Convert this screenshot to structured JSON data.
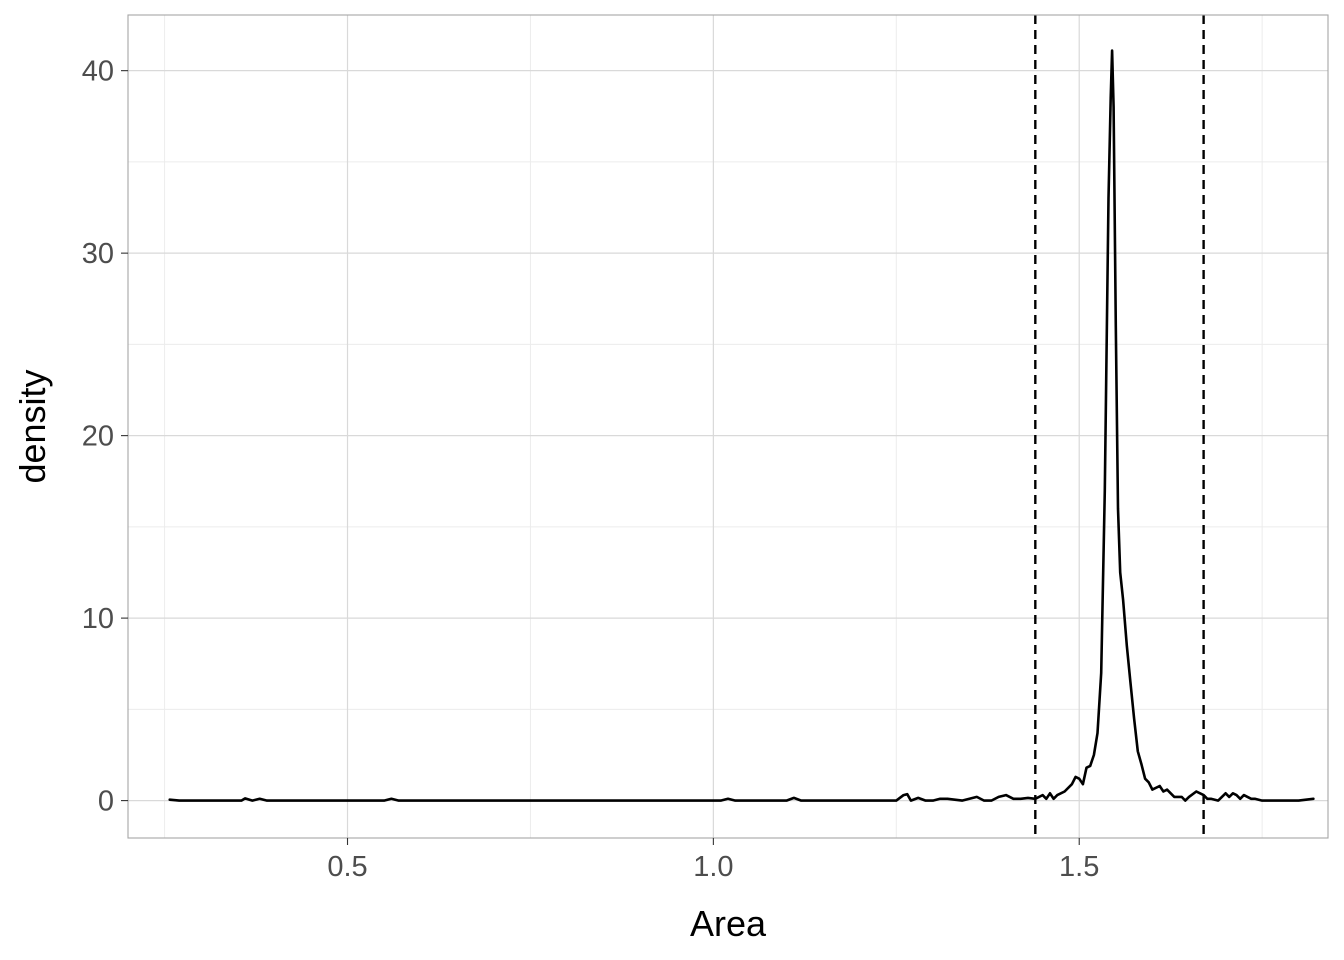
{
  "chart_data": {
    "type": "line",
    "title": "",
    "xlabel": "Area",
    "ylabel": "density",
    "xlim": [
      0.2,
      1.84
    ],
    "ylim": [
      -2.05,
      43.05
    ],
    "x_ticks": [
      0.5,
      1.0,
      1.5
    ],
    "x_tick_labels": [
      "0.5",
      "1.0",
      "1.5"
    ],
    "y_ticks": [
      0,
      10,
      20,
      30,
      40
    ],
    "y_tick_labels": [
      "0",
      "10",
      "20",
      "30",
      "40"
    ],
    "x_minor_ticks": [
      0.25,
      0.75,
      1.25,
      1.75
    ],
    "y_minor_ticks": [
      5,
      15,
      25,
      35
    ],
    "grid": true,
    "colors": {
      "line": "#000000",
      "grid_major": "#d9d9d9",
      "grid_minor": "#ececec",
      "panel_border": "#a6a6a6"
    },
    "reference_lines": [
      {
        "x": 1.44,
        "style": "dashed"
      },
      {
        "x": 1.67,
        "style": "dashed"
      }
    ],
    "series": [
      {
        "name": "density",
        "x": [
          0.257,
          0.27,
          0.3,
          0.34,
          0.355,
          0.36,
          0.37,
          0.38,
          0.39,
          0.42,
          0.5,
          0.55,
          0.56,
          0.57,
          0.65,
          0.75,
          0.85,
          0.95,
          1.01,
          1.02,
          1.03,
          1.08,
          1.1,
          1.11,
          1.12,
          1.14,
          1.2,
          1.25,
          1.26,
          1.265,
          1.27,
          1.28,
          1.29,
          1.3,
          1.31,
          1.32,
          1.34,
          1.36,
          1.37,
          1.38,
          1.39,
          1.4,
          1.41,
          1.42,
          1.43,
          1.44,
          1.45,
          1.455,
          1.46,
          1.465,
          1.47,
          1.48,
          1.49,
          1.495,
          1.5,
          1.505,
          1.51,
          1.515,
          1.52,
          1.525,
          1.53,
          1.535,
          1.54,
          1.543,
          1.545,
          1.547,
          1.55,
          1.553,
          1.556,
          1.56,
          1.565,
          1.57,
          1.575,
          1.58,
          1.585,
          1.59,
          1.595,
          1.6,
          1.61,
          1.615,
          1.62,
          1.625,
          1.63,
          1.64,
          1.645,
          1.65,
          1.66,
          1.67,
          1.675,
          1.68,
          1.69,
          1.7,
          1.705,
          1.71,
          1.715,
          1.72,
          1.725,
          1.73,
          1.735,
          1.74,
          1.75,
          1.76,
          1.765,
          1.77,
          1.78,
          1.79,
          1.8,
          1.81,
          1.82
        ],
        "y": [
          0.05,
          0,
          0,
          0,
          0,
          0.12,
          0,
          0.1,
          0,
          0,
          0,
          0,
          0.1,
          0,
          0,
          0,
          0,
          0,
          0,
          0.1,
          0,
          0,
          0,
          0.15,
          0,
          0,
          0,
          0,
          0.3,
          0.35,
          0,
          0.15,
          0,
          0,
          0.1,
          0.1,
          0,
          0.2,
          0,
          0,
          0.2,
          0.3,
          0.1,
          0.1,
          0.15,
          0.1,
          0.3,
          0.1,
          0.4,
          0.1,
          0.3,
          0.5,
          0.9,
          1.3,
          1.2,
          0.9,
          1.8,
          1.9,
          2.5,
          3.7,
          7.0,
          17.0,
          33.0,
          38.5,
          41.1,
          38.0,
          26.0,
          16.0,
          12.5,
          11.0,
          8.5,
          6.5,
          4.5,
          2.7,
          2.0,
          1.2,
          1.0,
          0.6,
          0.8,
          0.5,
          0.6,
          0.4,
          0.2,
          0.2,
          0.0,
          0.2,
          0.5,
          0.3,
          0.1,
          0.1,
          0.0,
          0.4,
          0.2,
          0.4,
          0.3,
          0.1,
          0.3,
          0.2,
          0.1,
          0.1,
          0.0,
          0.0,
          0.0,
          0.0,
          0.0,
          0.0,
          0.0,
          0.05,
          0.1
        ]
      }
    ]
  }
}
